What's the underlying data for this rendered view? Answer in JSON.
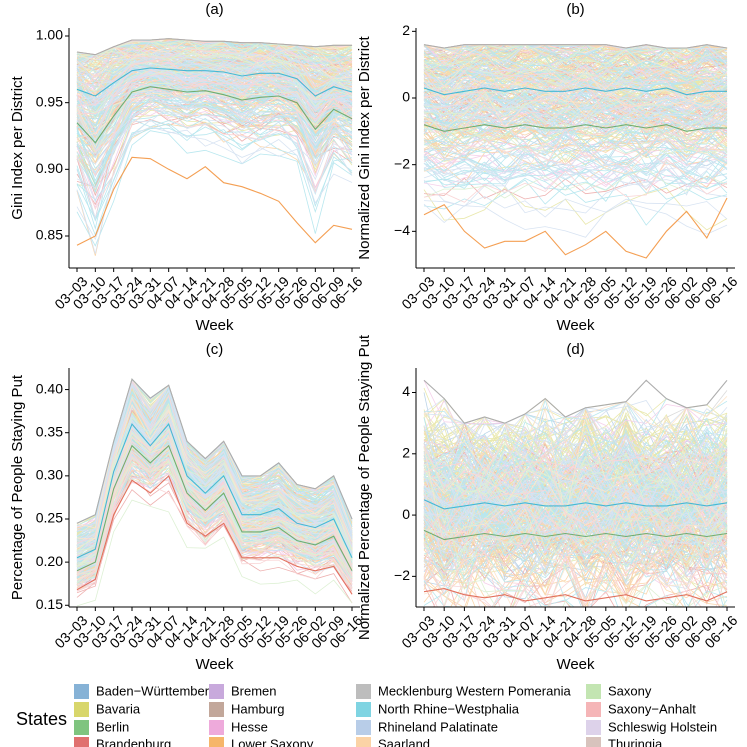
{
  "figure": {
    "x_label": "Week"
  },
  "weeks": [
    "03−03",
    "03−10",
    "03−17",
    "03−24",
    "03−31",
    "04−07",
    "04−14",
    "04−21",
    "04−28",
    "05−05",
    "05−12",
    "05−19",
    "05−26",
    "06−02",
    "06−09",
    "06−16"
  ],
  "legend": {
    "title": "States",
    "states": [
      {
        "name": "Baden−Württemberg",
        "color": "#86b2d6"
      },
      {
        "name": "Bavaria",
        "color": "#d8d66b"
      },
      {
        "name": "Berlin",
        "color": "#7fc47f"
      },
      {
        "name": "Brandenburg",
        "color": "#e0706f"
      },
      {
        "name": "Bremen",
        "color": "#c8a9dc"
      },
      {
        "name": "Hamburg",
        "color": "#c2a79a"
      },
      {
        "name": "Hesse",
        "color": "#eeaadb"
      },
      {
        "name": "Lower Saxony",
        "color": "#f6b66a"
      },
      {
        "name": "Mecklenburg Western Pomerania",
        "color": "#bdbdbd"
      },
      {
        "name": "North Rhine−Westphalia",
        "color": "#7fd4e2"
      },
      {
        "name": "Rhineland Palatinate",
        "color": "#b8cde8"
      },
      {
        "name": "Saarland",
        "color": "#fbd3a6"
      },
      {
        "name": "Saxony",
        "color": "#c3e5b2"
      },
      {
        "name": "Saxony−Anhalt",
        "color": "#f5b5b7"
      },
      {
        "name": "Schleswig Holstein",
        "color": "#ddd2ea"
      },
      {
        "name": "Thuringia",
        "color": "#d8c3bd"
      }
    ]
  },
  "chart_data": [
    {
      "panel": "(a)",
      "type": "line",
      "ylabel": "Gini Index per District",
      "xlabel": "Week",
      "ylim": [
        0.826,
        1.006
      ],
      "yticks": [
        0.85,
        0.9,
        0.95,
        1.0
      ],
      "ytick_labels": [
        "0.85",
        "0.90",
        "0.95",
        "1.00"
      ],
      "series_count": 401,
      "series": [
        {
          "name": "upper envelope",
          "values": [
            0.988,
            0.986,
            0.992,
            0.997,
            0.997,
            0.998,
            0.997,
            0.996,
            0.996,
            0.995,
            0.995,
            0.994,
            0.993,
            0.992,
            0.993,
            0.993
          ]
        },
        {
          "name": "typical district",
          "values": [
            0.96,
            0.955,
            0.965,
            0.974,
            0.976,
            0.975,
            0.974,
            0.974,
            0.973,
            0.97,
            0.972,
            0.972,
            0.968,
            0.955,
            0.962,
            0.958
          ]
        },
        {
          "name": "lower-quartile district",
          "values": [
            0.935,
            0.92,
            0.94,
            0.958,
            0.962,
            0.96,
            0.958,
            0.959,
            0.956,
            0.952,
            0.954,
            0.955,
            0.95,
            0.93,
            0.945,
            0.938
          ]
        },
        {
          "name": "lowest district (Lower Saxony)",
          "values": [
            0.843,
            0.85,
            0.885,
            0.909,
            0.908,
            0.9,
            0.893,
            0.902,
            0.89,
            0.887,
            0.882,
            0.876,
            0.86,
            0.845,
            0.858,
            0.855
          ]
        }
      ]
    },
    {
      "panel": "(b)",
      "type": "line",
      "ylabel": "Normalized Gini Index per District",
      "xlabel": "Week",
      "ylim": [
        -5.1,
        2.1
      ],
      "yticks": [
        -4,
        -2,
        0,
        2
      ],
      "ytick_labels": [
        "−4",
        "−2",
        "0",
        "2"
      ],
      "series_count": 401,
      "series": [
        {
          "name": "upper envelope",
          "values": [
            1.6,
            1.5,
            1.6,
            1.6,
            1.6,
            1.6,
            1.6,
            1.6,
            1.6,
            1.6,
            1.5,
            1.6,
            1.5,
            1.5,
            1.6,
            1.5
          ]
        },
        {
          "name": "typical district",
          "values": [
            0.3,
            0.1,
            0.2,
            0.3,
            0.2,
            0.3,
            0.2,
            0.2,
            0.3,
            0.2,
            0.3,
            0.2,
            0.3,
            0.1,
            0.2,
            0.2
          ]
        },
        {
          "name": "lower-quartile district",
          "values": [
            -0.8,
            -1.0,
            -0.9,
            -0.8,
            -0.9,
            -0.8,
            -0.9,
            -0.9,
            -0.8,
            -0.9,
            -0.8,
            -0.9,
            -0.8,
            -1.0,
            -0.9,
            -0.9
          ]
        },
        {
          "name": "lowest district (Lower Saxony)",
          "values": [
            -3.5,
            -3.2,
            -4.0,
            -4.5,
            -4.3,
            -4.3,
            -4.0,
            -4.7,
            -4.4,
            -4.0,
            -4.6,
            -4.8,
            -4.0,
            -3.4,
            -4.2,
            -3.0
          ]
        }
      ]
    },
    {
      "panel": "(c)",
      "type": "line",
      "ylabel": "Percentage of People Staying Put",
      "xlabel": "Week",
      "ylim": [
        0.148,
        0.425
      ],
      "yticks": [
        0.15,
        0.2,
        0.25,
        0.3,
        0.35,
        0.4
      ],
      "ytick_labels": [
        "0.15",
        "0.20",
        "0.25",
        "0.30",
        "0.35",
        "0.40"
      ],
      "series_count": 401,
      "series": [
        {
          "name": "upper envelope",
          "values": [
            0.245,
            0.255,
            0.34,
            0.412,
            0.39,
            0.405,
            0.34,
            0.32,
            0.34,
            0.3,
            0.3,
            0.315,
            0.29,
            0.285,
            0.3,
            0.25
          ]
        },
        {
          "name": "typical district",
          "values": [
            0.205,
            0.215,
            0.305,
            0.36,
            0.335,
            0.36,
            0.3,
            0.28,
            0.3,
            0.255,
            0.255,
            0.262,
            0.245,
            0.24,
            0.25,
            0.205
          ]
        },
        {
          "name": "lower-quartile district",
          "values": [
            0.19,
            0.2,
            0.285,
            0.335,
            0.315,
            0.335,
            0.28,
            0.26,
            0.28,
            0.235,
            0.235,
            0.24,
            0.225,
            0.22,
            0.23,
            0.19
          ]
        },
        {
          "name": "lower envelope",
          "values": [
            0.168,
            0.18,
            0.255,
            0.295,
            0.28,
            0.3,
            0.245,
            0.23,
            0.245,
            0.205,
            0.205,
            0.205,
            0.195,
            0.19,
            0.195,
            0.163
          ]
        }
      ]
    },
    {
      "panel": "(d)",
      "type": "line",
      "ylabel": "Normalized Percentage of People Staying Put",
      "xlabel": "Week",
      "ylim": [
        -3.0,
        4.8
      ],
      "yticks": [
        -2,
        0,
        2,
        4
      ],
      "ytick_labels": [
        "−2",
        "0",
        "2",
        "4"
      ],
      "series_count": 401,
      "series": [
        {
          "name": "upper envelope",
          "values": [
            4.4,
            3.8,
            3.0,
            3.2,
            3.0,
            3.3,
            3.8,
            3.2,
            3.5,
            3.6,
            3.7,
            4.4,
            3.8,
            3.5,
            3.6,
            4.4
          ]
        },
        {
          "name": "typical district",
          "values": [
            0.5,
            0.2,
            0.3,
            0.4,
            0.3,
            0.4,
            0.3,
            0.3,
            0.4,
            0.3,
            0.4,
            0.3,
            0.3,
            0.4,
            0.3,
            0.4
          ]
        },
        {
          "name": "lower-quartile district",
          "values": [
            -0.5,
            -0.8,
            -0.7,
            -0.6,
            -0.7,
            -0.6,
            -0.7,
            -0.6,
            -0.7,
            -0.6,
            -0.7,
            -0.6,
            -0.7,
            -0.6,
            -0.7,
            -0.6
          ]
        },
        {
          "name": "lower envelope",
          "values": [
            -2.5,
            -2.4,
            -2.6,
            -2.7,
            -2.6,
            -2.8,
            -2.7,
            -2.6,
            -2.8,
            -2.7,
            -2.6,
            -2.8,
            -2.7,
            -2.6,
            -2.8,
            -2.5
          ]
        }
      ]
    }
  ]
}
